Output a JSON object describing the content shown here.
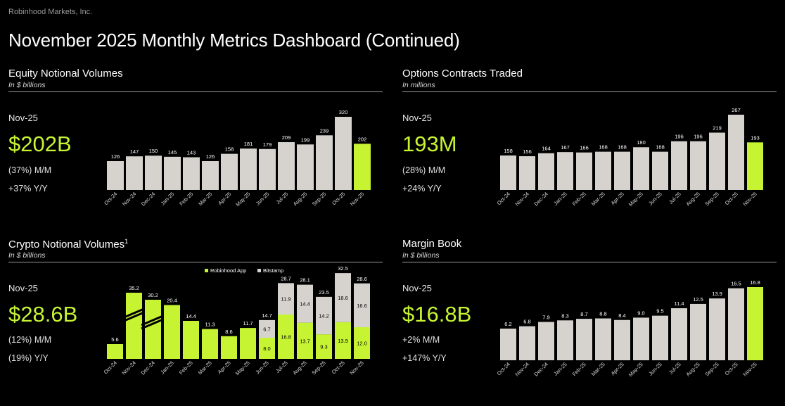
{
  "company": "Robinhood Markets, Inc.",
  "page_title": "November 2025 Monthly Metrics Dashboard (Continued)",
  "colors": {
    "accent": "#c6f432",
    "bar_gray": "#d6d3cf",
    "background": "#000000"
  },
  "panels": [
    {
      "title": "Equity Notional Volumes",
      "title_sup": "",
      "unit": "In $ billions",
      "period": "Nov-25",
      "big_value": "$202B",
      "line1": "(37%) M/M",
      "line2": "+37% Y/Y"
    },
    {
      "title": "Options Contracts Traded",
      "title_sup": "",
      "unit": "In millions",
      "period": "Nov-25",
      "big_value": "193M",
      "line1": "(28%) M/M",
      "line2": "+24% Y/Y"
    },
    {
      "title": "Crypto Notional Volumes",
      "title_sup": "1",
      "unit": "In $ billions",
      "period": "Nov-25",
      "big_value": "$28.6B",
      "line1": "(12%) M/M",
      "line2": "(19%) Y/Y"
    },
    {
      "title": "Margin Book",
      "title_sup": "",
      "unit": "In $ billions",
      "period": "Nov-25",
      "big_value": "$16.8B",
      "line1": "+2% M/M",
      "line2": "+147% Y/Y"
    }
  ],
  "chart_data": [
    {
      "type": "bar",
      "title": "Equity Notional Volumes",
      "categories": [
        "Oct-24",
        "Nov-24",
        "Dec-24",
        "Jan-25",
        "Feb-25",
        "Mar-25",
        "Apr-25",
        "May-25",
        "Jun-25",
        "Jul-25",
        "Aug-25",
        "Sep-25",
        "Oct-25",
        "Nov-25"
      ],
      "values": [
        126,
        147,
        150,
        145,
        143,
        126,
        158,
        181,
        179,
        209,
        199,
        239,
        320,
        202
      ],
      "labels": [
        "126",
        "147",
        "150",
        "145",
        "143",
        "126",
        "158",
        "181",
        "179",
        "209",
        "199",
        "239",
        "320",
        "202"
      ],
      "highlight_last": true
    },
    {
      "type": "bar",
      "title": "Options Contracts Traded",
      "categories": [
        "Oct-24",
        "Nov-24",
        "Dec-24",
        "Jan-25",
        "Feb-25",
        "Mar-25",
        "Apr-25",
        "May-25",
        "Jun-25",
        "Jul-25",
        "Aug-25",
        "Sep-25",
        "Oct-25",
        "Nov-25"
      ],
      "values": [
        158,
        156,
        164,
        167,
        166,
        168,
        168,
        180,
        168,
        196,
        196,
        219,
        267,
        193
      ],
      "labels": [
        "158",
        "156",
        "164",
        "167",
        "166",
        "168",
        "168",
        "180",
        "168",
        "196",
        "196",
        "219",
        "267",
        "193"
      ],
      "highlight_last": true
    },
    {
      "type": "bar",
      "title": "Crypto Notional Volumes",
      "categories": [
        "Oct-24",
        "Nov-24",
        "Dec-24",
        "Jan-25",
        "Feb-25",
        "Mar-25",
        "Apr-25",
        "May-25",
        "Jun-25",
        "Jul-25",
        "Aug-25",
        "Sep-25",
        "Oct-25",
        "Nov-25"
      ],
      "series": [
        {
          "name": "Robinhood App",
          "values": [
            5.6,
            35.2,
            30.2,
            20.4,
            14.4,
            11.3,
            8.6,
            11.7,
            8.0,
            16.8,
            13.7,
            9.3,
            13.9,
            12.0
          ],
          "labels": [
            "",
            "",
            "",
            "",
            "",
            "",
            "",
            "",
            "8.0",
            "16.8",
            "13.7",
            "9.3",
            "13.9",
            "12.0"
          ]
        },
        {
          "name": "Bitstamp",
          "values": [
            0,
            0,
            0,
            0,
            0,
            0,
            0,
            0,
            6.7,
            11.9,
            14.4,
            14.2,
            18.6,
            16.6
          ],
          "labels": [
            "",
            "",
            "",
            "",
            "",
            "",
            "",
            "",
            "6.7",
            "11.9",
            "14.4",
            "14.2",
            "18.6",
            "16.6"
          ]
        }
      ],
      "totals": [
        5.6,
        35.2,
        30.2,
        20.4,
        14.4,
        11.3,
        8.6,
        11.7,
        14.7,
        28.7,
        28.1,
        23.5,
        32.5,
        28.6
      ],
      "total_labels": [
        "5.6",
        "35.2",
        "30.2",
        "20.4",
        "14.4",
        "11.3",
        "8.6",
        "11.7",
        "14.7",
        "28.7",
        "28.1",
        "23.5",
        "32.5",
        "28.6"
      ],
      "broken_axis": [
        "Nov-24",
        "Dec-24"
      ],
      "legend": "top-right",
      "stacked": true
    },
    {
      "type": "bar",
      "title": "Margin Book",
      "categories": [
        "Oct-24",
        "Nov-24",
        "Dec-24",
        "Jan-25",
        "Feb-25",
        "Mar-25",
        "Apr-25",
        "May-25",
        "Jun-25",
        "Jul-25",
        "Aug-25",
        "Sep-25",
        "Oct-25",
        "Nov-25"
      ],
      "values": [
        6.2,
        6.8,
        7.9,
        8.3,
        8.7,
        8.8,
        8.4,
        9.0,
        9.5,
        11.4,
        12.5,
        13.9,
        16.5,
        16.8
      ],
      "labels": [
        "6.2",
        "6.8",
        "7.9",
        "8.3",
        "8.7",
        "8.8",
        "8.4",
        "9.0",
        "9.5",
        "11.4",
        "12.5",
        "13.9",
        "16.5",
        "16.8"
      ],
      "highlight_last": true
    }
  ]
}
